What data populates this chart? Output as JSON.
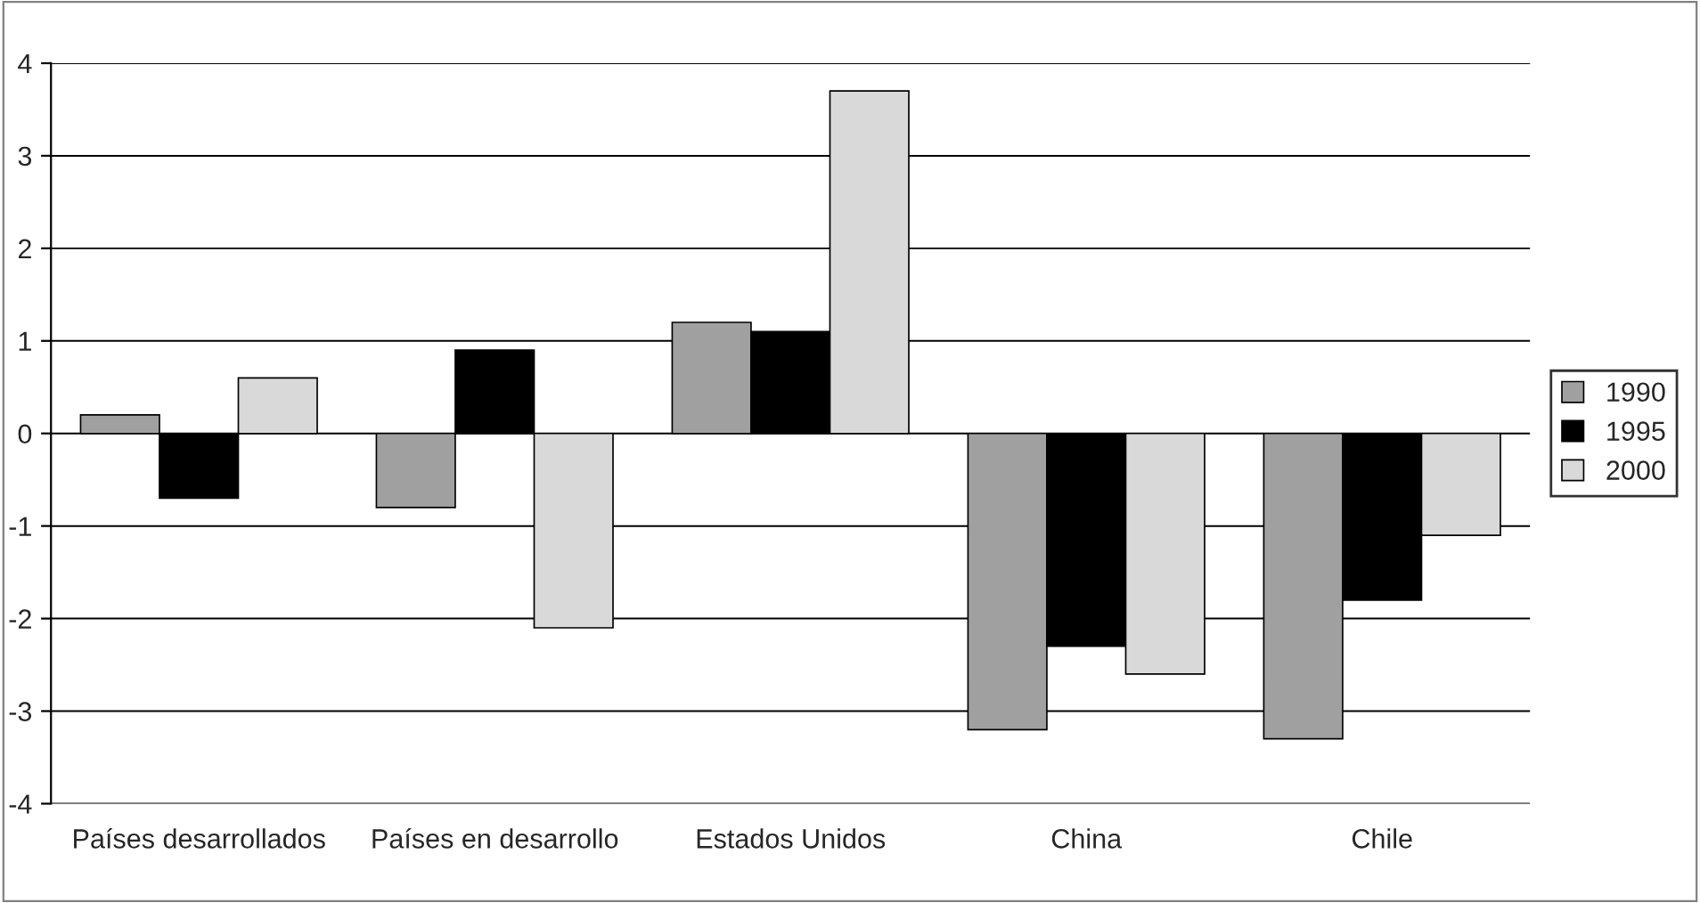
{
  "chart_data": {
    "type": "bar",
    "categories": [
      "Países desarrollados",
      "Países en desarrollo",
      "Estados Unidos",
      "China",
      "Chile"
    ],
    "series": [
      {
        "name": "1990",
        "color": "#a0a0a0",
        "values": [
          0.2,
          -0.8,
          1.2,
          -3.2,
          -3.3
        ]
      },
      {
        "name": "1995",
        "color": "#000000",
        "values": [
          -0.7,
          0.9,
          1.1,
          -2.3,
          -1.8
        ]
      },
      {
        "name": "2000",
        "color": "#d9d9d9",
        "values": [
          0.6,
          -2.1,
          3.7,
          -2.6,
          -1.1
        ]
      }
    ],
    "ylim": [
      -4,
      4
    ],
    "yticks": [
      -4,
      -3,
      -2,
      -1,
      0,
      1,
      2,
      3,
      4
    ],
    "grid": "y",
    "legend": "right"
  }
}
